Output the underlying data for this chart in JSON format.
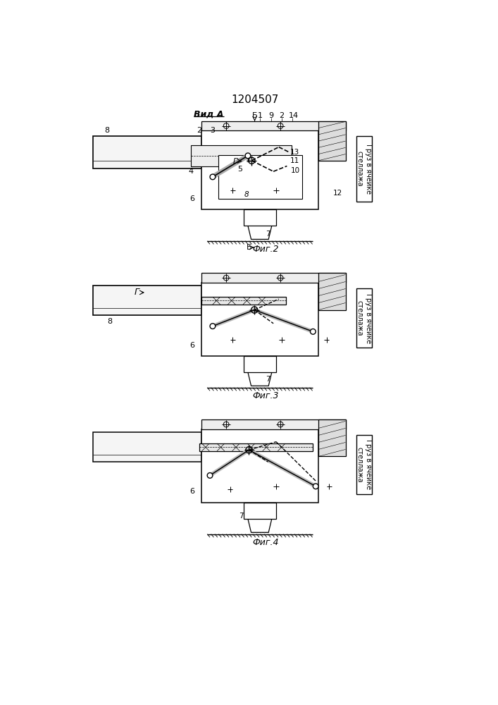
{
  "title": "1204507",
  "bg_color": "#ffffff",
  "line_color": "#000000",
  "fig2_label": "Фиг.2",
  "fig3_label": "Фиг.3",
  "fig4_label": "Фиг.4",
  "view_label": "Вид А",
  "side_label": "Груз в ячейке\nстеллажа"
}
